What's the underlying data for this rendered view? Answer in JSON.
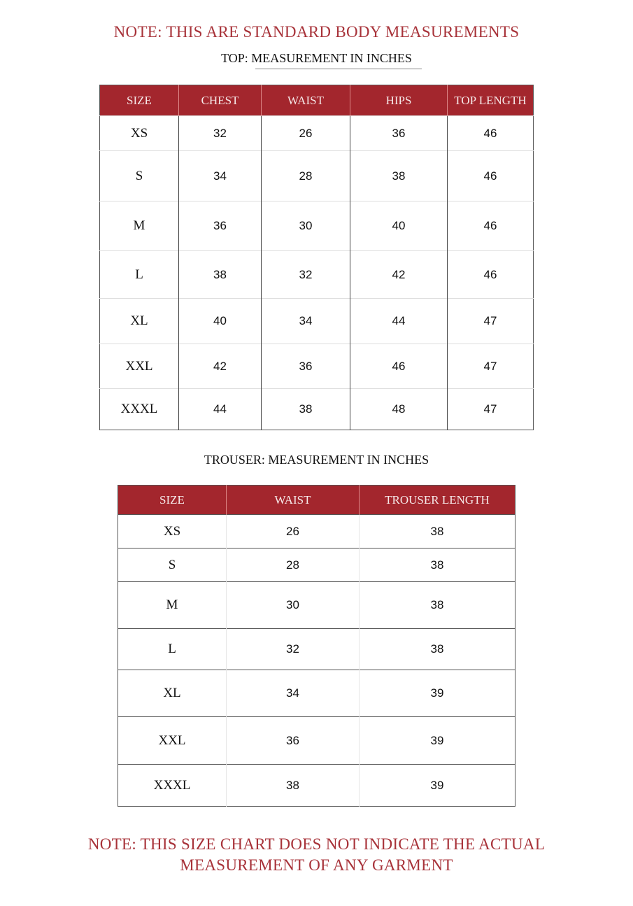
{
  "note_top": "NOTE: THIS ARE STANDARD BODY MEASUREMENTS",
  "top_table": {
    "title": "TOP: MEASUREMENT IN INCHES",
    "headers": [
      "SIZE",
      "CHEST",
      "WAIST",
      "HIPS",
      "TOP LENGTH"
    ],
    "rows": [
      [
        "XS",
        "32",
        "26",
        "36",
        "46"
      ],
      [
        "S",
        "34",
        "28",
        "38",
        "46"
      ],
      [
        "M",
        "36",
        "30",
        "40",
        "46"
      ],
      [
        "L",
        "38",
        "32",
        "42",
        "46"
      ],
      [
        "XL",
        "40",
        "34",
        "44",
        "47"
      ],
      [
        "XXL",
        "42",
        "36",
        "46",
        "47"
      ],
      [
        "XXXL",
        "44",
        "38",
        "48",
        "47"
      ]
    ]
  },
  "trouser_table": {
    "title": "TROUSER: MEASUREMENT IN INCHES",
    "headers": [
      "SIZE",
      "WAIST",
      "TROUSER LENGTH"
    ],
    "rows": [
      [
        "XS",
        "26",
        "38"
      ],
      [
        "S",
        "28",
        "38"
      ],
      [
        "M",
        "30",
        "38"
      ],
      [
        "L",
        "32",
        "38"
      ],
      [
        "XL",
        "34",
        "39"
      ],
      [
        "XXL",
        "36",
        "39"
      ],
      [
        "XXXL",
        "38",
        "39"
      ]
    ]
  },
  "note_bottom_line1": "NOTE: THIS SIZE CHART DOES NOT INDICATE THE ACTUAL",
  "note_bottom_line2": "MEASUREMENT OF ANY GARMENT",
  "colors": {
    "header_bg": "#a3262d",
    "note_text": "#a8333a"
  }
}
